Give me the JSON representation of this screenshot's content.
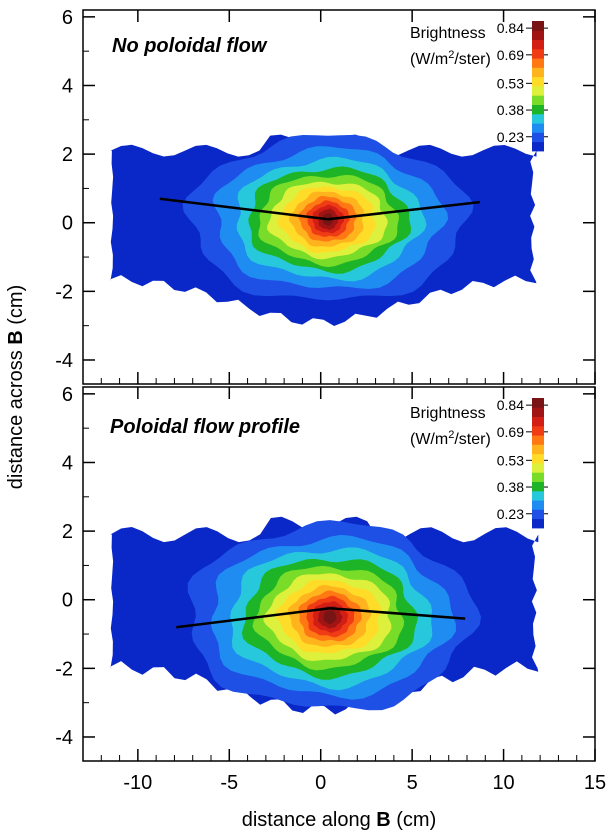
{
  "chart_data": {
    "type": "heatmap",
    "xlabel": {
      "prefix": "distance along ",
      "bold": "B",
      "suffix": " (cm)"
    },
    "ylabel": {
      "prefix": "distance across ",
      "bold": "B",
      "suffix": " (cm)"
    },
    "xlim": [
      -13,
      15
    ],
    "x_ticks": [
      -10,
      -5,
      0,
      5,
      10,
      15
    ],
    "colorbar": {
      "title": "Brightness",
      "units_prefix": "(W/m",
      "units_sup": "2",
      "units_suffix": "/ster)",
      "ticks": [
        0.84,
        0.69,
        0.53,
        0.38,
        0.23
      ],
      "range": [
        0.15,
        0.88
      ],
      "colors": [
        "#0a28c8",
        "#1e50e6",
        "#1e8cf0",
        "#28c8dc",
        "#1eb428",
        "#78dc28",
        "#dcf03c",
        "#ffdc28",
        "#ffb41e",
        "#ff7814",
        "#f03c14",
        "#d21e14",
        "#a01414",
        "#781414"
      ]
    },
    "panels": [
      {
        "title": "No poloidal flow",
        "ylim": [
          -4.7,
          6.2
        ],
        "y_ticks": [
          6,
          4,
          2,
          0,
          -2,
          -4
        ],
        "center": [
          0.4,
          0.1
        ],
        "profile_line": {
          "x": [
            -8.8,
            0.4,
            8.7
          ],
          "y": [
            0.7,
            0.1,
            0.6
          ]
        }
      },
      {
        "title": "Poloidal flow profile",
        "ylim": [
          -4.7,
          6.2
        ],
        "y_ticks": [
          6,
          4,
          2,
          0,
          -2,
          -4
        ],
        "center": [
          0.5,
          -0.5
        ],
        "profile_line": {
          "x": [
            -7.9,
            0.5,
            7.9
          ],
          "y": [
            -0.8,
            -0.25,
            -0.55
          ]
        }
      }
    ]
  }
}
